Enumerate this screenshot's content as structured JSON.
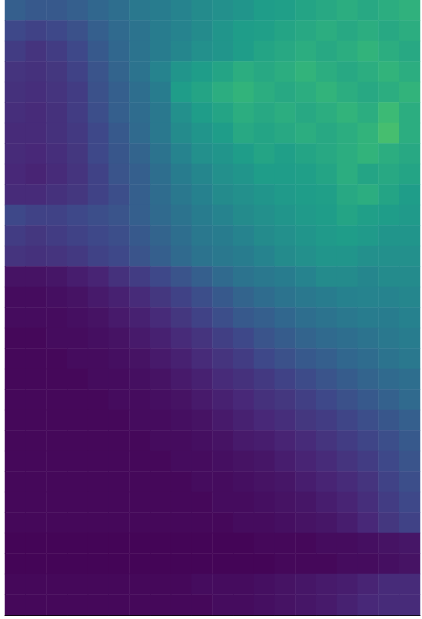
{
  "chart_data": {
    "type": "heatmap",
    "tick_labels": false,
    "zlim": [
      0,
      1
    ],
    "cells": [
      [
        0.3,
        0.28,
        0.28,
        0.3,
        0.33,
        0.36,
        0.4,
        0.42,
        0.45,
        0.48,
        0.5,
        0.52,
        0.55,
        0.56,
        0.58,
        0.6,
        0.62,
        0.6,
        0.62,
        0.64
      ],
      [
        0.22,
        0.2,
        0.22,
        0.25,
        0.3,
        0.34,
        0.38,
        0.42,
        0.45,
        0.48,
        0.52,
        0.55,
        0.56,
        0.58,
        0.6,
        0.62,
        0.6,
        0.62,
        0.6,
        0.62
      ],
      [
        0.18,
        0.15,
        0.18,
        0.22,
        0.28,
        0.33,
        0.38,
        0.42,
        0.46,
        0.5,
        0.52,
        0.55,
        0.58,
        0.6,
        0.62,
        0.6,
        0.62,
        0.65,
        0.62,
        0.6
      ],
      [
        0.15,
        0.14,
        0.16,
        0.2,
        0.26,
        0.32,
        0.38,
        0.45,
        0.52,
        0.55,
        0.58,
        0.62,
        0.6,
        0.62,
        0.65,
        0.62,
        0.6,
        0.62,
        0.65,
        0.62
      ],
      [
        0.14,
        0.13,
        0.15,
        0.18,
        0.25,
        0.3,
        0.36,
        0.42,
        0.55,
        0.58,
        0.62,
        0.65,
        0.62,
        0.6,
        0.62,
        0.65,
        0.62,
        0.6,
        0.62,
        0.65
      ],
      [
        0.13,
        0.12,
        0.14,
        0.18,
        0.24,
        0.3,
        0.35,
        0.4,
        0.5,
        0.55,
        0.58,
        0.62,
        0.6,
        0.62,
        0.6,
        0.62,
        0.65,
        0.62,
        0.68,
        0.62
      ],
      [
        0.12,
        0.12,
        0.14,
        0.17,
        0.22,
        0.28,
        0.34,
        0.4,
        0.48,
        0.52,
        0.55,
        0.6,
        0.58,
        0.6,
        0.62,
        0.6,
        0.62,
        0.65,
        0.7,
        0.62
      ],
      [
        0.12,
        0.11,
        0.13,
        0.16,
        0.22,
        0.27,
        0.32,
        0.38,
        0.45,
        0.5,
        0.52,
        0.55,
        0.58,
        0.56,
        0.58,
        0.6,
        0.62,
        0.65,
        0.62,
        0.6
      ],
      [
        0.11,
        0.1,
        0.12,
        0.15,
        0.2,
        0.26,
        0.3,
        0.36,
        0.42,
        0.46,
        0.5,
        0.52,
        0.55,
        0.55,
        0.56,
        0.58,
        0.62,
        0.58,
        0.6,
        0.58
      ],
      [
        0.12,
        0.12,
        0.14,
        0.16,
        0.2,
        0.24,
        0.3,
        0.35,
        0.4,
        0.44,
        0.48,
        0.5,
        0.52,
        0.54,
        0.55,
        0.56,
        0.6,
        0.62,
        0.58,
        0.55
      ],
      [
        0.22,
        0.2,
        0.2,
        0.22,
        0.24,
        0.26,
        0.3,
        0.34,
        0.38,
        0.42,
        0.45,
        0.48,
        0.5,
        0.52,
        0.54,
        0.55,
        0.58,
        0.56,
        0.55,
        0.54
      ],
      [
        0.18,
        0.16,
        0.18,
        0.2,
        0.22,
        0.24,
        0.28,
        0.32,
        0.36,
        0.4,
        0.42,
        0.45,
        0.48,
        0.5,
        0.52,
        0.54,
        0.55,
        0.54,
        0.52,
        0.52
      ],
      [
        0.15,
        0.14,
        0.15,
        0.17,
        0.2,
        0.22,
        0.26,
        0.3,
        0.34,
        0.38,
        0.4,
        0.42,
        0.45,
        0.48,
        0.5,
        0.52,
        0.52,
        0.5,
        0.5,
        0.5
      ],
      [
        0.05,
        0.05,
        0.06,
        0.08,
        0.1,
        0.14,
        0.18,
        0.22,
        0.26,
        0.3,
        0.34,
        0.38,
        0.4,
        0.42,
        0.45,
        0.48,
        0.48,
        0.46,
        0.48,
        0.48
      ],
      [
        0.03,
        0.03,
        0.04,
        0.05,
        0.07,
        0.09,
        0.12,
        0.16,
        0.2,
        0.24,
        0.28,
        0.32,
        0.35,
        0.38,
        0.4,
        0.42,
        0.44,
        0.45,
        0.45,
        0.46
      ],
      [
        0.03,
        0.03,
        0.03,
        0.04,
        0.05,
        0.07,
        0.09,
        0.12,
        0.16,
        0.2,
        0.24,
        0.28,
        0.3,
        0.33,
        0.36,
        0.38,
        0.4,
        0.42,
        0.42,
        0.44
      ],
      [
        0.02,
        0.02,
        0.03,
        0.03,
        0.04,
        0.05,
        0.07,
        0.09,
        0.12,
        0.15,
        0.19,
        0.22,
        0.26,
        0.29,
        0.32,
        0.34,
        0.36,
        0.38,
        0.4,
        0.42
      ],
      [
        0.02,
        0.02,
        0.02,
        0.03,
        0.03,
        0.04,
        0.05,
        0.07,
        0.09,
        0.12,
        0.15,
        0.18,
        0.22,
        0.25,
        0.28,
        0.3,
        0.33,
        0.35,
        0.38,
        0.4
      ],
      [
        0.02,
        0.02,
        0.02,
        0.02,
        0.03,
        0.03,
        0.04,
        0.05,
        0.07,
        0.09,
        0.12,
        0.14,
        0.17,
        0.2,
        0.23,
        0.26,
        0.29,
        0.32,
        0.34,
        0.36
      ],
      [
        0.02,
        0.02,
        0.02,
        0.02,
        0.02,
        0.03,
        0.03,
        0.04,
        0.05,
        0.07,
        0.09,
        0.11,
        0.14,
        0.16,
        0.19,
        0.22,
        0.25,
        0.28,
        0.31,
        0.34
      ],
      [
        0.02,
        0.02,
        0.02,
        0.02,
        0.02,
        0.02,
        0.03,
        0.03,
        0.04,
        0.05,
        0.07,
        0.09,
        0.11,
        0.13,
        0.16,
        0.18,
        0.21,
        0.24,
        0.27,
        0.3
      ],
      [
        0.02,
        0.02,
        0.02,
        0.02,
        0.02,
        0.02,
        0.02,
        0.03,
        0.03,
        0.04,
        0.05,
        0.07,
        0.08,
        0.1,
        0.12,
        0.15,
        0.18,
        0.21,
        0.24,
        0.28
      ],
      [
        0.02,
        0.02,
        0.02,
        0.02,
        0.02,
        0.02,
        0.02,
        0.02,
        0.03,
        0.03,
        0.04,
        0.05,
        0.06,
        0.08,
        0.1,
        0.12,
        0.15,
        0.18,
        0.22,
        0.26
      ],
      [
        0.02,
        0.02,
        0.02,
        0.02,
        0.02,
        0.02,
        0.02,
        0.02,
        0.02,
        0.03,
        0.03,
        0.04,
        0.05,
        0.06,
        0.08,
        0.1,
        0.12,
        0.15,
        0.2,
        0.24
      ],
      [
        0.02,
        0.02,
        0.02,
        0.02,
        0.02,
        0.02,
        0.02,
        0.02,
        0.02,
        0.02,
        0.03,
        0.03,
        0.04,
        0.05,
        0.06,
        0.08,
        0.1,
        0.13,
        0.18,
        0.22
      ],
      [
        0.02,
        0.02,
        0.02,
        0.02,
        0.02,
        0.02,
        0.02,
        0.02,
        0.02,
        0.02,
        0.02,
        0.03,
        0.03,
        0.04,
        0.05,
        0.06,
        0.08,
        0.11,
        0.16,
        0.2
      ],
      [
        0.01,
        0.01,
        0.01,
        0.01,
        0.01,
        0.01,
        0.01,
        0.01,
        0.01,
        0.01,
        0.01,
        0.01,
        0.02,
        0.02,
        0.02,
        0.03,
        0.03,
        0.04,
        0.05,
        0.06
      ],
      [
        0.01,
        0.01,
        0.01,
        0.01,
        0.01,
        0.01,
        0.01,
        0.01,
        0.01,
        0.01,
        0.01,
        0.01,
        0.01,
        0.02,
        0.02,
        0.02,
        0.03,
        0.03,
        0.04,
        0.05
      ],
      [
        0.02,
        0.02,
        0.02,
        0.02,
        0.02,
        0.02,
        0.02,
        0.02,
        0.02,
        0.03,
        0.03,
        0.03,
        0.04,
        0.05,
        0.06,
        0.07,
        0.08,
        0.1,
        0.12,
        0.12
      ],
      [
        0.02,
        0.02,
        0.02,
        0.02,
        0.02,
        0.02,
        0.02,
        0.02,
        0.02,
        0.02,
        0.03,
        0.03,
        0.04,
        0.05,
        0.06,
        0.07,
        0.09,
        0.11,
        0.12,
        0.12
      ]
    ]
  }
}
